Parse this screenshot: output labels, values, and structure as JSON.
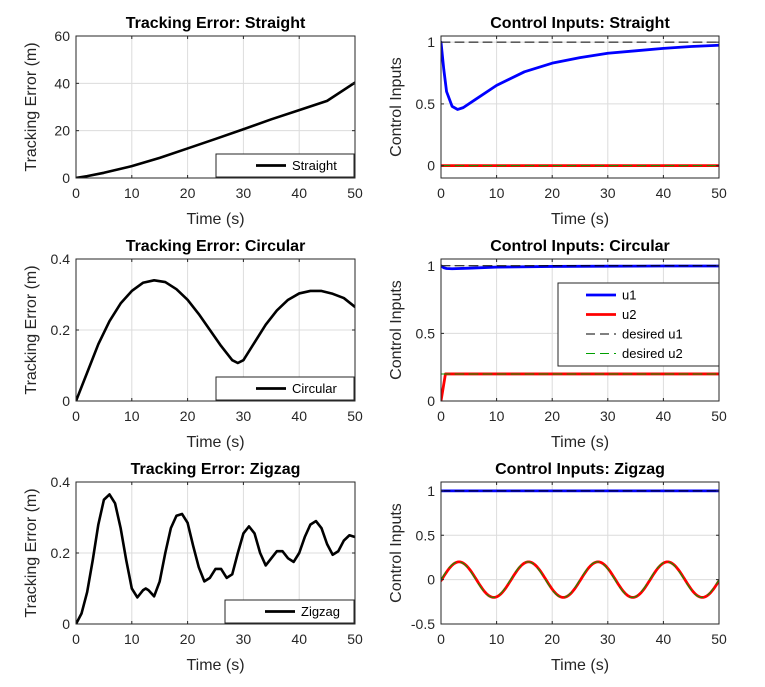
{
  "chart_data": [
    {
      "type": "line",
      "title": "Tracking Error: Straight",
      "xlabel": "Time (s)",
      "ylabel": "Tracking Error (m)",
      "xlim": [
        0,
        50
      ],
      "ylim": [
        0,
        60
      ],
      "xticks": [
        0,
        10,
        20,
        30,
        40,
        50
      ],
      "yticks": [
        0,
        20,
        40,
        60
      ],
      "grid": true,
      "legend": "bottom-right",
      "series": [
        {
          "name": "Straight",
          "color": "#000000",
          "style": "solid",
          "x": [
            0,
            2,
            5,
            10,
            15,
            20,
            25,
            30,
            35,
            40,
            45,
            50
          ],
          "y": [
            0,
            0.8,
            2.2,
            5.0,
            8.5,
            12.5,
            16.5,
            20.6,
            24.8,
            28.7,
            32.6,
            40.3
          ]
        }
      ]
    },
    {
      "type": "line",
      "title": "Control Inputs: Straight",
      "xlabel": "Time (s)",
      "ylabel": "Control Inputs",
      "xlim": [
        0,
        50
      ],
      "ylim": [
        -0.1,
        1.05
      ],
      "xticks": [
        0,
        10,
        20,
        30,
        40,
        50
      ],
      "yticks": [
        0,
        0.5,
        1
      ],
      "grid": true,
      "series": [
        {
          "color": "#0000ff",
          "style": "solid",
          "x": [
            0,
            0.5,
            1,
            2,
            3,
            4,
            6,
            10,
            15,
            20,
            25,
            30,
            35,
            40,
            45,
            50
          ],
          "y": [
            1.0,
            0.78,
            0.6,
            0.48,
            0.455,
            0.47,
            0.53,
            0.65,
            0.76,
            0.83,
            0.875,
            0.91,
            0.93,
            0.95,
            0.965,
            0.975
          ]
        },
        {
          "color": "#ff0000",
          "style": "solid",
          "x": [
            0,
            50
          ],
          "y": [
            0,
            0
          ]
        },
        {
          "color": "#000000",
          "style": "dashed",
          "x": [
            0,
            50
          ],
          "y": [
            1,
            1
          ]
        },
        {
          "color": "#00a000",
          "style": "dashed",
          "x": [
            0,
            50
          ],
          "y": [
            0,
            0
          ]
        }
      ]
    },
    {
      "type": "line",
      "title": "Tracking Error: Circular",
      "xlabel": "Time (s)",
      "ylabel": "Tracking Error (m)",
      "xlim": [
        0,
        50
      ],
      "ylim": [
        0,
        0.4
      ],
      "xticks": [
        0,
        10,
        20,
        30,
        40,
        50
      ],
      "yticks": [
        0,
        0.2,
        0.4
      ],
      "grid": true,
      "legend": "bottom-right",
      "series": [
        {
          "name": "Circular",
          "color": "#000000",
          "style": "solid",
          "x": [
            0,
            2,
            4,
            6,
            8,
            10,
            12,
            14,
            16,
            18,
            20,
            22,
            24,
            26,
            28,
            29,
            30,
            32,
            34,
            36,
            38,
            40,
            42,
            44,
            46,
            48,
            50
          ],
          "y": [
            0,
            0.08,
            0.16,
            0.225,
            0.275,
            0.31,
            0.333,
            0.34,
            0.335,
            0.315,
            0.285,
            0.245,
            0.2,
            0.155,
            0.115,
            0.107,
            0.115,
            0.165,
            0.215,
            0.255,
            0.285,
            0.303,
            0.31,
            0.31,
            0.302,
            0.29,
            0.265
          ]
        }
      ]
    },
    {
      "type": "line",
      "title": "Control Inputs: Circular",
      "xlabel": "Time (s)",
      "ylabel": "Control Inputs",
      "xlim": [
        0,
        50
      ],
      "ylim": [
        0,
        1.05
      ],
      "xticks": [
        0,
        10,
        20,
        30,
        40,
        50
      ],
      "yticks": [
        0,
        0.5,
        1
      ],
      "grid": true,
      "legend": "top-right",
      "series": [
        {
          "name": "u1",
          "color": "#0000ff",
          "style": "solid",
          "x": [
            0,
            0.5,
            1,
            2,
            5,
            10,
            20,
            30,
            40,
            50
          ],
          "y": [
            1.0,
            0.985,
            0.98,
            0.978,
            0.982,
            0.99,
            0.995,
            0.997,
            0.998,
            0.998
          ]
        },
        {
          "name": "u2",
          "color": "#ff0000",
          "style": "solid",
          "x": [
            0,
            0.4,
            0.8,
            2,
            50
          ],
          "y": [
            0,
            0.1,
            0.2,
            0.2,
            0.2
          ]
        },
        {
          "name": "desired u1",
          "color": "#000000",
          "style": "dashed",
          "x": [
            0,
            50
          ],
          "y": [
            1,
            1
          ]
        },
        {
          "name": "desired u2",
          "color": "#00a000",
          "style": "dashed",
          "x": [
            0,
            50
          ],
          "y": [
            0.2,
            0.2
          ]
        }
      ]
    },
    {
      "type": "line",
      "title": "Tracking Error: Zigzag",
      "xlabel": "Time (s)",
      "ylabel": "Tracking Error (m)",
      "xlim": [
        0,
        50
      ],
      "ylim": [
        0,
        0.4
      ],
      "xticks": [
        0,
        10,
        20,
        30,
        40,
        50
      ],
      "yticks": [
        0,
        0.2,
        0.4
      ],
      "grid": true,
      "legend": "bottom-right",
      "series": [
        {
          "name": "Zigzag",
          "color": "#000000",
          "style": "solid",
          "x": [
            0,
            1,
            2,
            3,
            4,
            5,
            6,
            7,
            8,
            9,
            10,
            11,
            12,
            12.5,
            13,
            14,
            15,
            16,
            17,
            18,
            19,
            20,
            21,
            22,
            23,
            24,
            25,
            26,
            27,
            28,
            29,
            30,
            31,
            32,
            33,
            34,
            35,
            36,
            37,
            38,
            39,
            40,
            41,
            42,
            43,
            44,
            45,
            46,
            47,
            48,
            49,
            50
          ],
          "y": [
            0,
            0.03,
            0.09,
            0.18,
            0.28,
            0.35,
            0.365,
            0.34,
            0.27,
            0.18,
            0.1,
            0.075,
            0.095,
            0.1,
            0.095,
            0.078,
            0.12,
            0.2,
            0.27,
            0.305,
            0.31,
            0.285,
            0.22,
            0.16,
            0.12,
            0.13,
            0.155,
            0.155,
            0.13,
            0.14,
            0.2,
            0.255,
            0.275,
            0.255,
            0.2,
            0.165,
            0.185,
            0.205,
            0.205,
            0.185,
            0.175,
            0.2,
            0.245,
            0.28,
            0.29,
            0.27,
            0.225,
            0.195,
            0.205,
            0.235,
            0.25,
            0.245
          ]
        }
      ]
    },
    {
      "type": "line",
      "title": "Control Inputs: Zigzag",
      "xlabel": "Time (s)",
      "ylabel": "Control Inputs",
      "xlim": [
        0,
        50
      ],
      "ylim": [
        -0.5,
        1.1
      ],
      "xticks": [
        0,
        10,
        20,
        30,
        40,
        50
      ],
      "yticks": [
        -0.5,
        0,
        0.5,
        1
      ],
      "grid": true,
      "sine_period": 12.5,
      "sine_amplitude": 0.2,
      "series": [
        {
          "color": "#0000ff",
          "style": "solid",
          "x": [
            0,
            50
          ],
          "y": [
            1,
            1
          ]
        },
        {
          "color": "#ff0000",
          "style": "solid",
          "kind": "sine",
          "phase_lag": 0.12
        },
        {
          "color": "#000000",
          "style": "dashed",
          "x": [
            0,
            50
          ],
          "y": [
            1,
            1
          ]
        },
        {
          "color": "#00a000",
          "style": "dashed",
          "kind": "sine",
          "phase_lag": 0.0
        }
      ]
    }
  ]
}
